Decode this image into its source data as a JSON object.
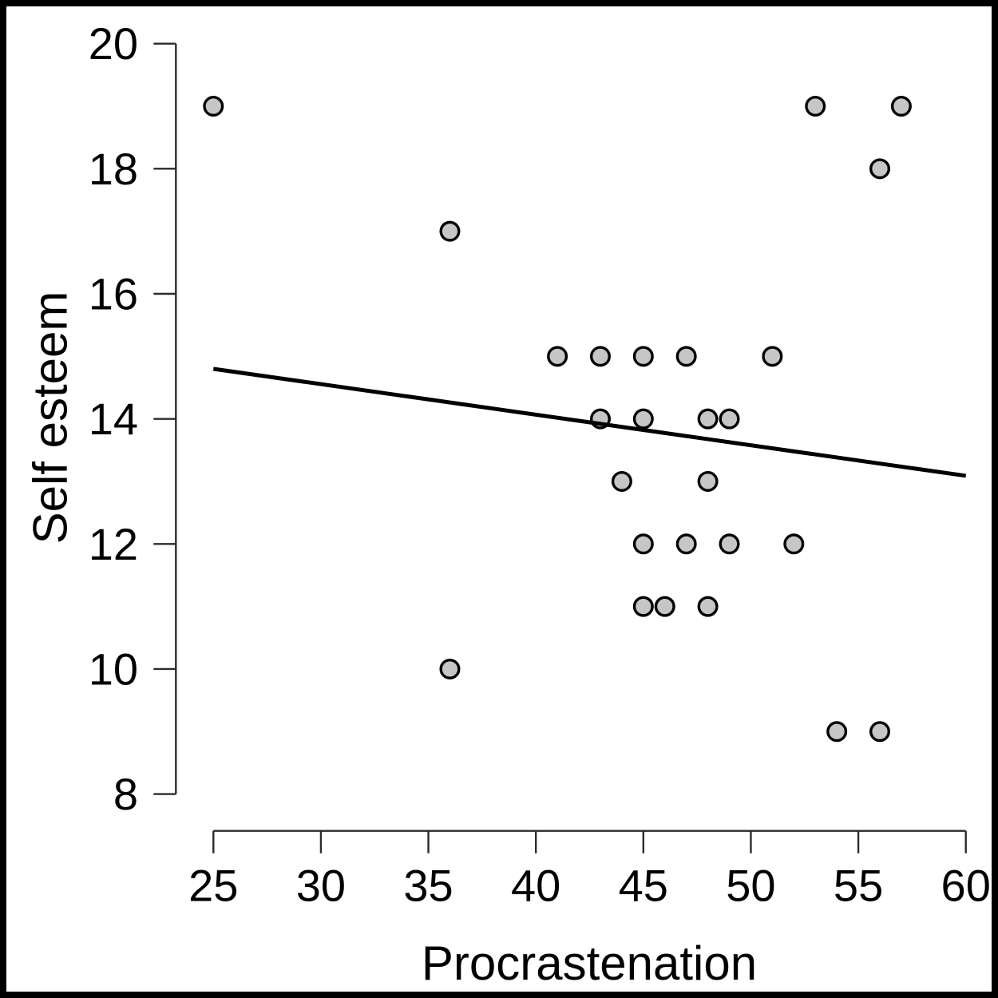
{
  "figure": {
    "background": "#ffffff",
    "border_color": "#000000"
  },
  "chart_data": {
    "type": "scatter",
    "title": "",
    "xlabel": "Procrastenation",
    "ylabel": "Self esteem",
    "xlim": [
      25,
      60
    ],
    "ylim": [
      8,
      20
    ],
    "x_ticks": [
      25,
      30,
      35,
      40,
      45,
      50,
      55,
      60
    ],
    "y_ticks": [
      8,
      10,
      12,
      14,
      16,
      18,
      20
    ],
    "grid": false,
    "legend": null,
    "points": [
      [
        25,
        19
      ],
      [
        36,
        17
      ],
      [
        36,
        10
      ],
      [
        41,
        15
      ],
      [
        43,
        15
      ],
      [
        45,
        15
      ],
      [
        47,
        15
      ],
      [
        51,
        15
      ],
      [
        43,
        14
      ],
      [
        45,
        14
      ],
      [
        48,
        14
      ],
      [
        49,
        14
      ],
      [
        44,
        13
      ],
      [
        48,
        13
      ],
      [
        45,
        12
      ],
      [
        47,
        12
      ],
      [
        49,
        12
      ],
      [
        52,
        12
      ],
      [
        45,
        11
      ],
      [
        46,
        11
      ],
      [
        48,
        11
      ],
      [
        53,
        19
      ],
      [
        56,
        18
      ],
      [
        57,
        19
      ],
      [
        54,
        9
      ],
      [
        56,
        9
      ]
    ],
    "regression_line": {
      "x1": 25,
      "y1": 14.8,
      "x2": 60,
      "y2": 13.09
    },
    "point_style": {
      "fill": "#c6c6c6",
      "stroke": "#000000",
      "radius": 11.3,
      "stroke_width": 3.4
    },
    "line_style": {
      "stroke": "#000000",
      "width": 5
    },
    "axis_style": {
      "stroke": "#2b2b2b",
      "width": 2.4,
      "tick_length": 28
    }
  }
}
